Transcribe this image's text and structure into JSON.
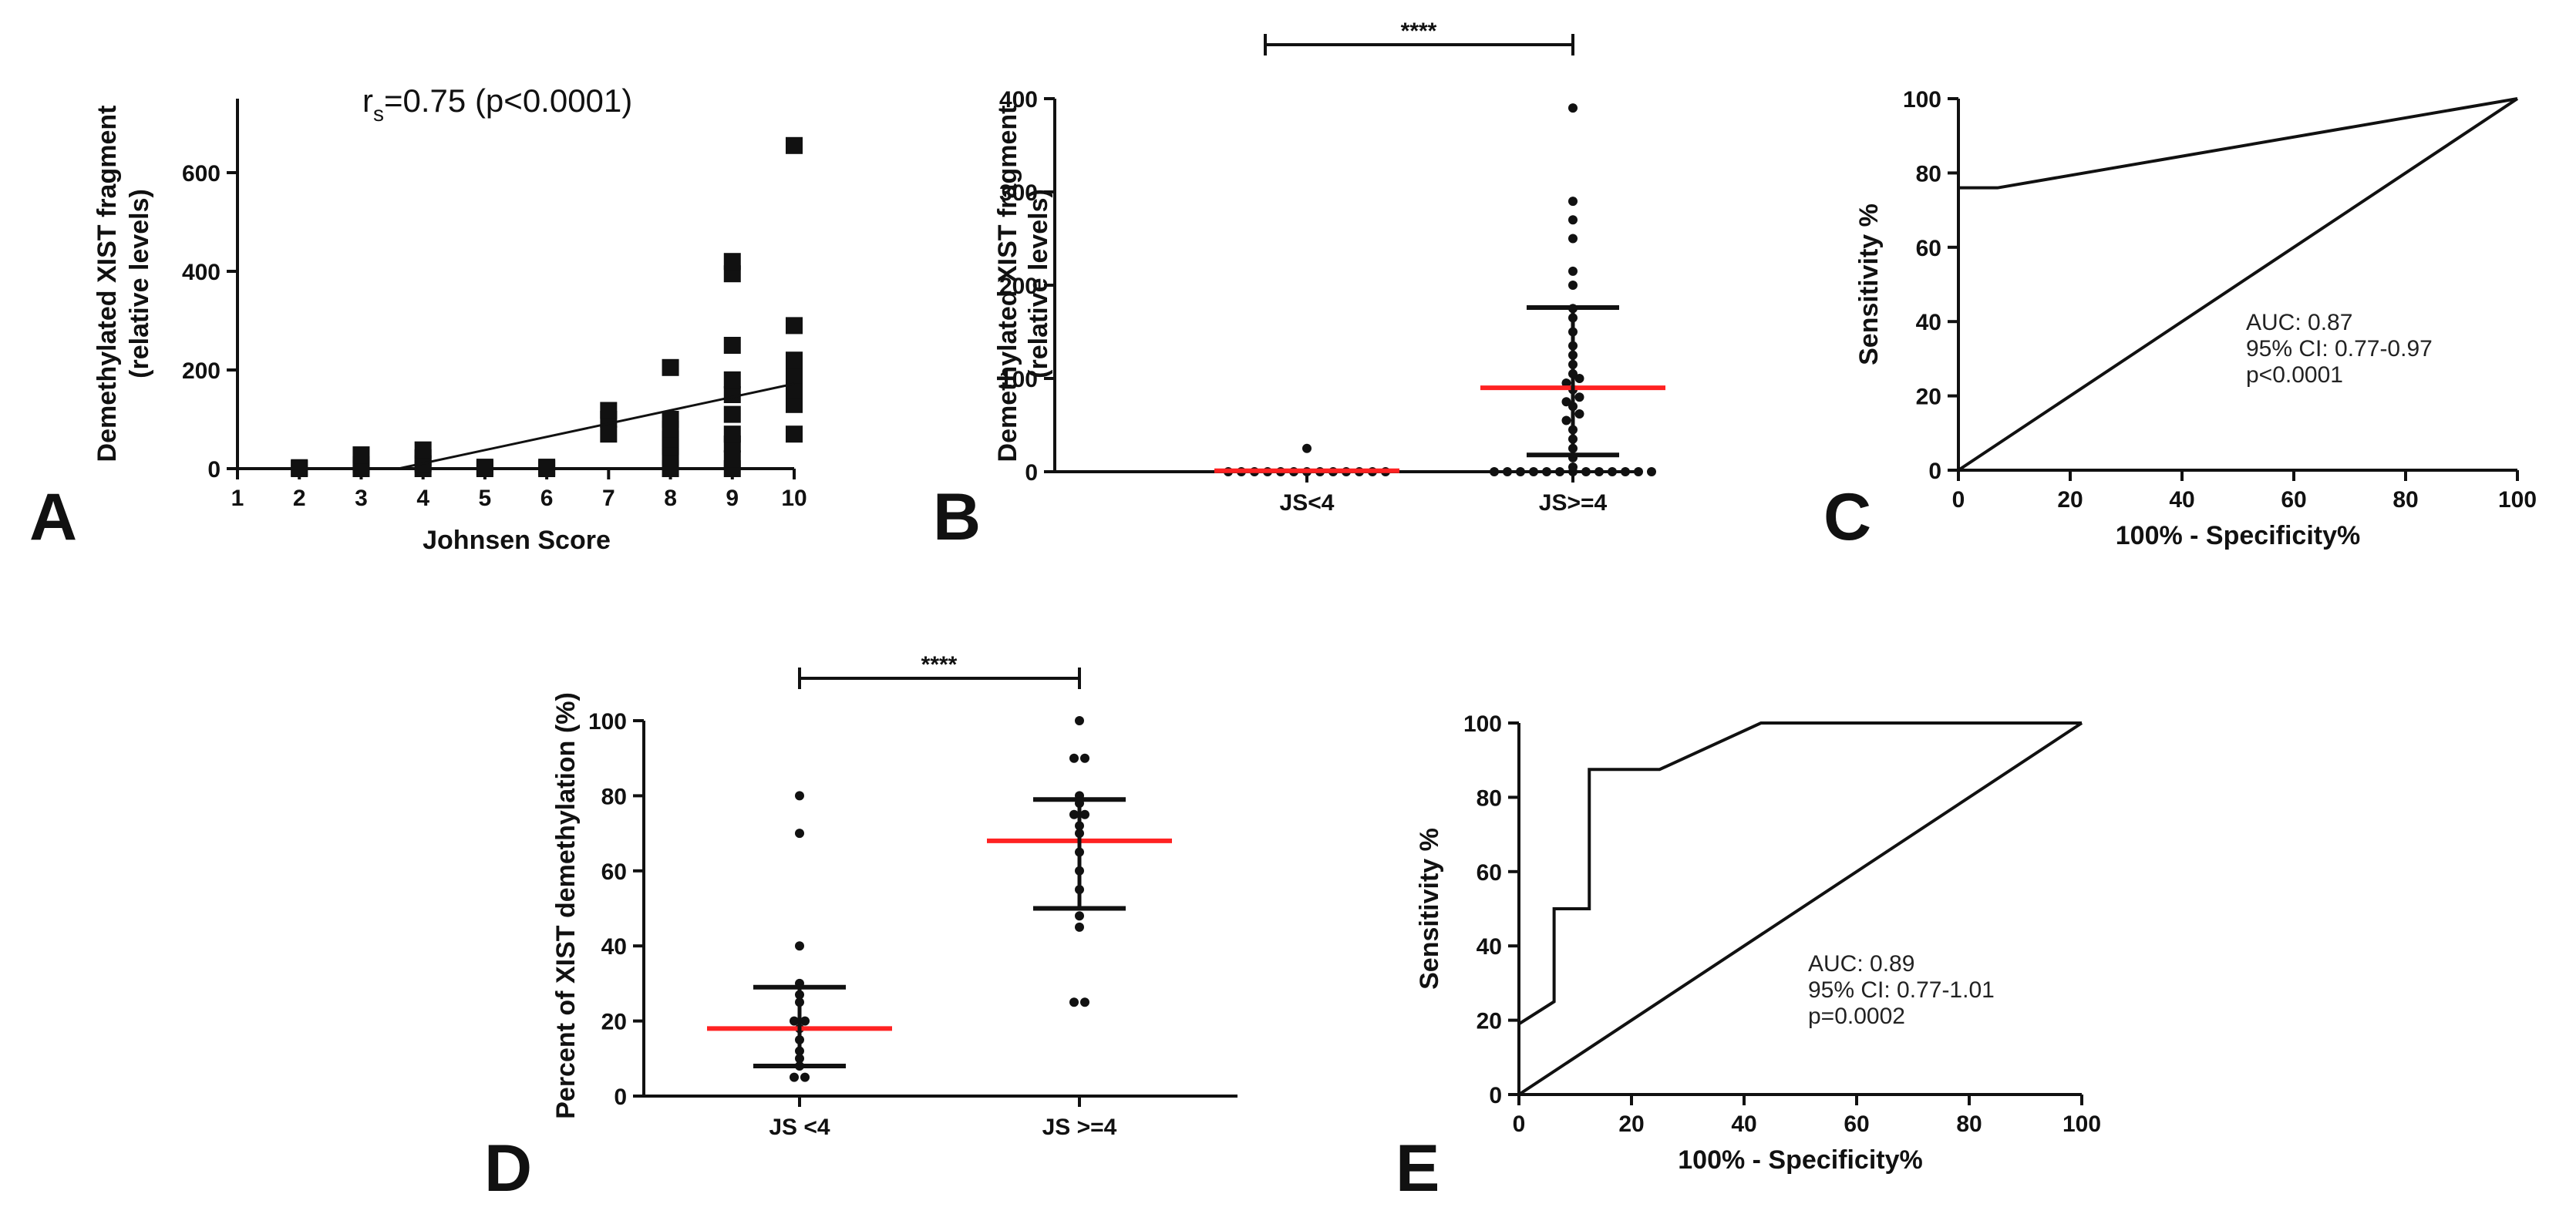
{
  "chart_data": [
    {
      "panel": "A",
      "type": "scatter",
      "title_prefix": "r",
      "title_sub": "s",
      "title_rest": "=0.75 (p<0.0001)",
      "xlabel": "Johnsen Score",
      "ylabel_line1": "Demethylated XIST fragment",
      "ylabel_line2": "(relative levels)",
      "xlim": [
        1,
        10
      ],
      "ylim": [
        0,
        750
      ],
      "xticks": [
        1,
        2,
        3,
        4,
        5,
        6,
        7,
        8,
        9,
        10
      ],
      "yticks": [
        0,
        200,
        400,
        600
      ],
      "points": [
        [
          2,
          0
        ],
        [
          2,
          2
        ],
        [
          3,
          0
        ],
        [
          3,
          8
        ],
        [
          3,
          28
        ],
        [
          4,
          0
        ],
        [
          4,
          10
        ],
        [
          4,
          22
        ],
        [
          4,
          38
        ],
        [
          5,
          0
        ],
        [
          5,
          3
        ],
        [
          6,
          0
        ],
        [
          6,
          3
        ],
        [
          7,
          70
        ],
        [
          7,
          100
        ],
        [
          7,
          118
        ],
        [
          8,
          0
        ],
        [
          8,
          25
        ],
        [
          8,
          45
        ],
        [
          8,
          60
        ],
        [
          8,
          80
        ],
        [
          8,
          100
        ],
        [
          8,
          205
        ],
        [
          9,
          0
        ],
        [
          9,
          20
        ],
        [
          9,
          50
        ],
        [
          9,
          70
        ],
        [
          9,
          110
        ],
        [
          9,
          150
        ],
        [
          9,
          180
        ],
        [
          9,
          250
        ],
        [
          9,
          395
        ],
        [
          9,
          420
        ],
        [
          10,
          70
        ],
        [
          10,
          130
        ],
        [
          10,
          160
        ],
        [
          10,
          190
        ],
        [
          10,
          220
        ],
        [
          10,
          290
        ],
        [
          10,
          655
        ]
      ],
      "fit_line": [
        [
          3.6,
          0
        ],
        [
          10,
          172
        ]
      ]
    },
    {
      "panel": "B",
      "type": "dot_plot",
      "ylabel_line1": "Demethylated XIST fragment",
      "ylabel_line2": "(relative levels)",
      "ylim": [
        0,
        400
      ],
      "yticks": [
        0,
        100,
        200,
        300,
        400
      ],
      "categories": [
        "JS<4",
        "JS>=4"
      ],
      "groups": [
        {
          "name": "JS<4",
          "mean": 1,
          "values": [
            0,
            0,
            0,
            0,
            0,
            0,
            0,
            0,
            0,
            0,
            0,
            0,
            0,
            25
          ]
        },
        {
          "name": "JS>=4",
          "mean": 90,
          "error_low": 18,
          "error_high": 176,
          "values": [
            0,
            0,
            0,
            0,
            0,
            0,
            0,
            0,
            0,
            0,
            0,
            0,
            0,
            5,
            15,
            25,
            35,
            45,
            55,
            62,
            70,
            75,
            80,
            88,
            95,
            100,
            105,
            115,
            125,
            135,
            150,
            165,
            175,
            200,
            215,
            250,
            270,
            290,
            390
          ]
        }
      ],
      "significance": "****"
    },
    {
      "panel": "C",
      "type": "line",
      "xlabel": "100% - Specificity%",
      "ylabel": "Sensitivity %",
      "xlim": [
        0,
        100
      ],
      "ylim": [
        0,
        100
      ],
      "xticks": [
        0,
        20,
        40,
        60,
        80,
        100
      ],
      "yticks": [
        0,
        20,
        40,
        60,
        80,
        100
      ],
      "series": [
        {
          "name": "ROC",
          "x": [
            0,
            7,
            100
          ],
          "y": [
            76,
            76,
            100
          ]
        },
        {
          "name": "Reference",
          "x": [
            0,
            100
          ],
          "y": [
            0,
            100
          ]
        }
      ],
      "annotations": [
        "AUC: 0.87",
        "95% CI: 0.77-0.97",
        "p<0.0001"
      ]
    },
    {
      "panel": "D",
      "type": "dot_plot",
      "ylabel": "Percent of XIST demethylation (%)",
      "ylim": [
        0,
        100
      ],
      "yticks": [
        0,
        20,
        40,
        60,
        80,
        100
      ],
      "categories": [
        "JS <4",
        "JS >=4"
      ],
      "groups": [
        {
          "name": "JS <4",
          "mean": 18,
          "error_low": 8,
          "error_high": 29,
          "values": [
            5,
            5,
            8,
            10,
            12,
            15,
            18,
            20,
            20,
            25,
            27,
            30,
            40,
            70,
            80
          ]
        },
        {
          "name": "JS >=4",
          "mean": 68,
          "error_low": 50,
          "error_high": 79,
          "values": [
            25,
            25,
            45,
            48,
            55,
            60,
            65,
            70,
            72,
            75,
            75,
            78,
            80,
            90,
            90,
            100
          ]
        }
      ],
      "significance": "****"
    },
    {
      "panel": "E",
      "type": "line",
      "xlabel": "100% - Specificity%",
      "ylabel": "Sensitivity %",
      "xlim": [
        0,
        100
      ],
      "ylim": [
        0,
        100
      ],
      "xticks": [
        0,
        20,
        40,
        60,
        80,
        100
      ],
      "yticks": [
        0,
        20,
        40,
        60,
        80,
        100
      ],
      "series": [
        {
          "name": "ROC",
          "x": [
            0,
            6.25,
            6.25,
            12.5,
            12.5,
            25,
            43,
            100
          ],
          "y": [
            19,
            25,
            50,
            50,
            87.5,
            87.5,
            100,
            100
          ]
        },
        {
          "name": "Reference",
          "x": [
            0,
            100
          ],
          "y": [
            0,
            100
          ]
        }
      ],
      "annotations": [
        "AUC: 0.89",
        "95% CI: 0.77-1.01",
        "p=0.0002"
      ]
    }
  ]
}
